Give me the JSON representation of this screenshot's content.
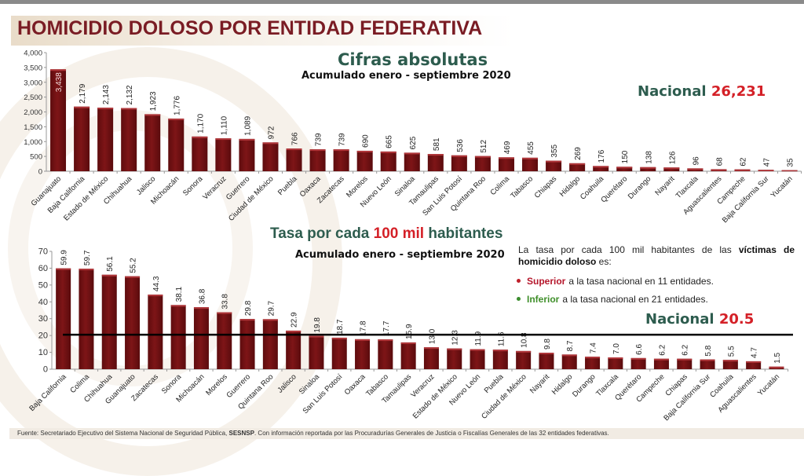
{
  "page": {
    "title": "HOMICIDIO DOLOSO POR ENTIDAD FEDERATIVA",
    "footer_prefix": "Fuente: Secretariado Ejecutivo del Sistema Nacional de Seguridad Pública, ",
    "footer_bold": "SESNSP",
    "footer_suffix": ". Con información reportada por las Procuradurías Generales de Justicia o Fiscalías Generales de las 32 entidades federativas."
  },
  "colors": {
    "bar": "#7b1416",
    "bar_highlight": "#b0363a",
    "title": "#7a1c24",
    "heading_green": "#2d5c4e",
    "accent_red": "#d42027",
    "reference_line": "#000000"
  },
  "top_panel": {
    "heading": "Cifras absolutas",
    "subheading": "Acumulado enero - septiembre 2020",
    "nacional_label": "Nacional",
    "nacional_value": "26,231"
  },
  "bottom_panel": {
    "heading_pre": "Tasa por cada ",
    "heading_red": "100 mil",
    "heading_post": " habitantes",
    "subheading": "Acumulado enero - septiembre 2020",
    "nacional_label": "Nacional",
    "nacional_value": "20.5",
    "info_pre": "La tasa por cada 100 mil habitantes de las ",
    "info_bold1": "víctimas de homicidio doloso",
    "info_post": " es:",
    "bullets": [
      {
        "strong": "Superior",
        "text": "a la tasa nacional en 11 entidades."
      },
      {
        "strong": "Inferior",
        "text": "a la tasa nacional en 21 entidades."
      }
    ]
  },
  "chart_data": [
    {
      "type": "bar",
      "title": "Cifras absolutas",
      "subtitle": "Acumulado enero - septiembre 2020",
      "xlabel": "",
      "ylabel": "",
      "ylim": [
        0,
        4000
      ],
      "yticks": [
        0,
        500,
        1000,
        1500,
        2000,
        2500,
        3000,
        3500,
        4000
      ],
      "ytick_labels": [
        "0",
        "500",
        "1,000",
        "1,500",
        "2,000",
        "2,500",
        "3,000",
        "3,500",
        "4,000"
      ],
      "grid": false,
      "categories": [
        "Guanajuato",
        "Baja California",
        "Estado de México",
        "Chihuahua",
        "Jalisco",
        "Michoacán",
        "Sonora",
        "Veracruz",
        "Guerrero",
        "Ciudad de México",
        "Puebla",
        "Oaxaca",
        "Zacatecas",
        "Morelos",
        "Nuevo León",
        "Sinaloa",
        "Tamaulipas",
        "San Luis Potosí",
        "Quintana Roo",
        "Colima",
        "Tabasco",
        "Chiapas",
        "Hidalgo",
        "Coahuila",
        "Querétaro",
        "Durango",
        "Nayarit",
        "Tlaxcala",
        "Aguascalientes",
        "Campeche",
        "Baja California Sur",
        "Yucatán"
      ],
      "values": [
        3438,
        2179,
        2143,
        2132,
        1923,
        1776,
        1170,
        1110,
        1089,
        972,
        766,
        739,
        739,
        690,
        665,
        625,
        581,
        536,
        512,
        469,
        455,
        355,
        269,
        176,
        150,
        138,
        126,
        96,
        68,
        62,
        47,
        35
      ],
      "data_labels": [
        "3,438",
        "2,179",
        "2,143",
        "2,132",
        "1,923",
        "1,776",
        "1,170",
        "1,110",
        "1,089",
        "972",
        "766",
        "739",
        "739",
        "690",
        "665",
        "625",
        "581",
        "536",
        "512",
        "469",
        "455",
        "355",
        "269",
        "176",
        "150",
        "138",
        "126",
        "96",
        "68",
        "62",
        "47",
        "35"
      ],
      "total_label": "Nacional 26,231"
    },
    {
      "type": "bar",
      "title": "Tasa por cada 100 mil habitantes",
      "subtitle": "Acumulado enero - septiembre 2020",
      "xlabel": "",
      "ylabel": "",
      "ylim": [
        0,
        70
      ],
      "yticks": [
        0,
        10,
        20,
        30,
        40,
        50,
        60,
        70
      ],
      "ytick_labels": [
        "0",
        "10",
        "20",
        "30",
        "40",
        "50",
        "60",
        "70"
      ],
      "grid": false,
      "categories": [
        "Baja California",
        "Colima",
        "Chihuahua",
        "Guanajuato",
        "Zacatecas",
        "Sonora",
        "Michoacán",
        "Morelos",
        "Guerrero",
        "Quintana Roo",
        "Jalisco",
        "Sinaloa",
        "San Luis Potosí",
        "Oaxaca",
        "Tabasco",
        "Tamaulipas",
        "Veracruz",
        "Estado de México",
        "Nuevo León",
        "Puebla",
        "Ciudad de México",
        "Nayarit",
        "Hidalgo",
        "Durango",
        "Tlaxcala",
        "Querétaro",
        "Campeche",
        "Chiapas",
        "Baja California Sur",
        "Coahuila",
        "Aguascalientes",
        "Yucatán"
      ],
      "values": [
        59.9,
        59.7,
        56.1,
        55.2,
        44.3,
        38.1,
        36.8,
        33.8,
        29.8,
        29.7,
        22.9,
        19.8,
        18.7,
        17.8,
        17.7,
        15.9,
        13.0,
        12.3,
        11.9,
        11.6,
        10.8,
        9.8,
        8.7,
        7.4,
        7.0,
        6.6,
        6.2,
        6.2,
        5.8,
        5.5,
        4.7,
        1.5
      ],
      "data_labels": [
        "59.9",
        "59.7",
        "56.1",
        "55.2",
        "44.3",
        "38.1",
        "36.8",
        "33.8",
        "29.8",
        "29.7",
        "22.9",
        "19.8",
        "18.7",
        "17.8",
        "17.7",
        "15.9",
        "13.0",
        "12.3",
        "11.9",
        "11.6",
        "10.8",
        "9.8",
        "8.7",
        "7.4",
        "7.0",
        "6.6",
        "6.2",
        "6.2",
        "5.8",
        "5.5",
        "4.7",
        "1.5"
      ],
      "reference_line": {
        "label": "Nacional",
        "value": 20.5
      }
    }
  ]
}
